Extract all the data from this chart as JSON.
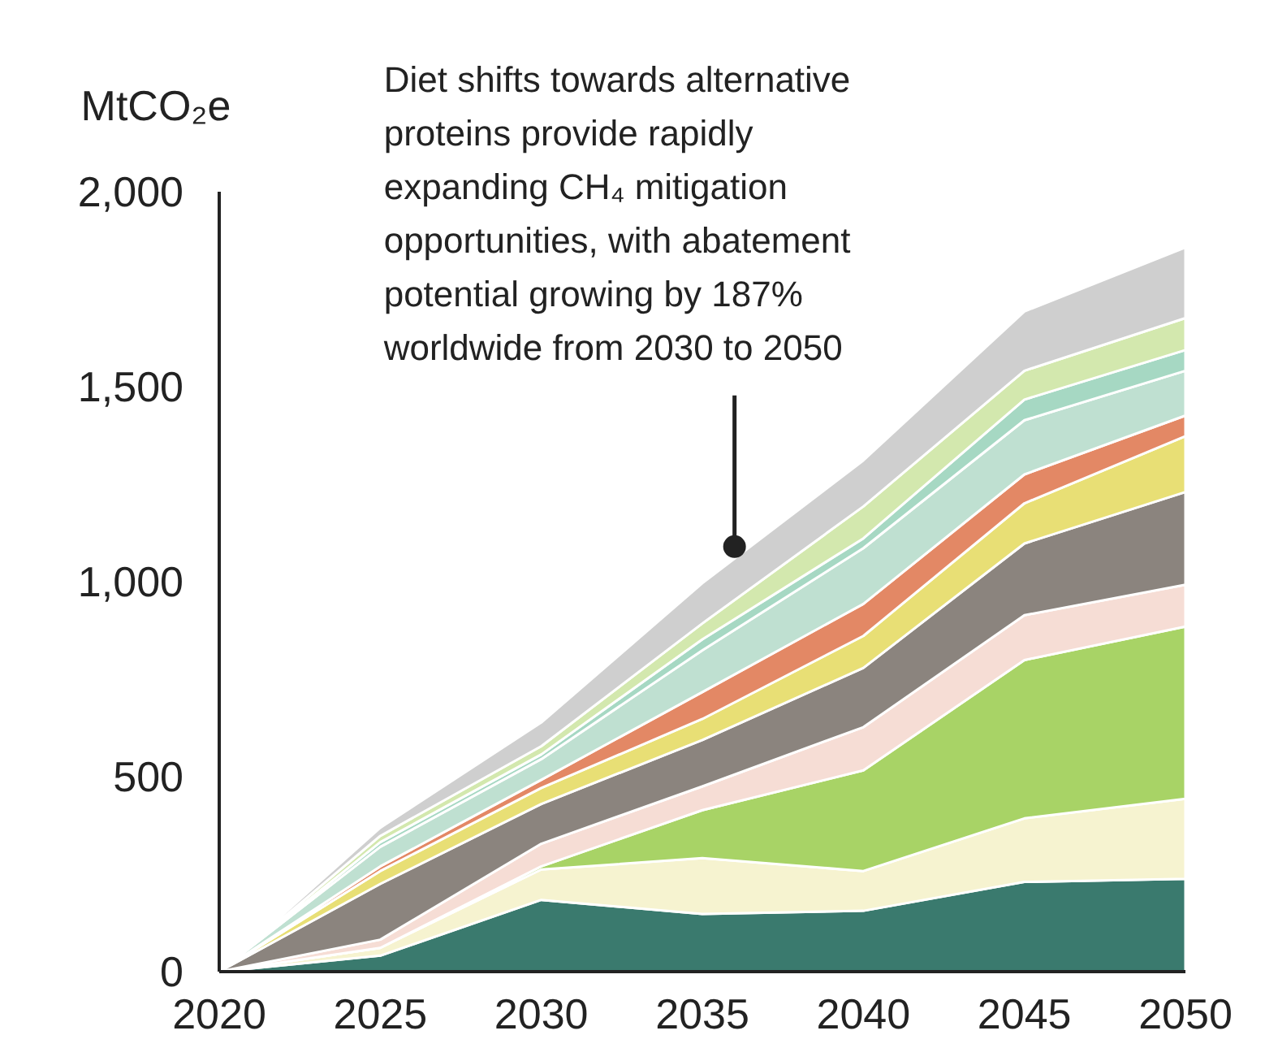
{
  "chart_data": {
    "type": "area",
    "stacked": true,
    "ylabel": "MtCO₂e",
    "x": [
      2020,
      2025,
      2030,
      2035,
      2040,
      2045,
      2050
    ],
    "xlim": [
      2020,
      2050
    ],
    "xticks": [
      2020,
      2025,
      2030,
      2035,
      2040,
      2045,
      2050
    ],
    "ylim": [
      0,
      2000
    ],
    "yticks": [
      0,
      500,
      {
        "value": 1000,
        "label": "1,000"
      },
      {
        "value": 1500,
        "label": "1,500"
      },
      {
        "value": 2000,
        "label": "2,000"
      }
    ],
    "grid": false,
    "annotations": [
      {
        "text": "Diet shifts towards alternative\nproteins provide rapidly\nexpanding CH₄ mitigation\nopportunities, with abatement\npotential growing by 187%\nworldwide from 2030 to 2050",
        "x": 2036,
        "y": 1090
      }
    ],
    "series": [
      {
        "color": "#3a7a6e",
        "values": [
          0,
          41,
          184,
          148,
          156,
          230,
          238
        ]
      },
      {
        "color": "#f6f3d0",
        "values": [
          0,
          20,
          78,
          143,
          102,
          163,
          205
        ]
      },
      {
        "color": "#a8d366",
        "values": [
          0,
          0,
          8,
          123,
          258,
          406,
          442
        ]
      },
      {
        "color": "#f6ddd5",
        "values": [
          0,
          21,
          58,
          61,
          111,
          115,
          107
        ]
      },
      {
        "color": "#8b847e",
        "values": [
          0,
          143,
          102,
          119,
          152,
          184,
          238
        ]
      },
      {
        "color": "#e8df75",
        "values": [
          0,
          33,
          41,
          54,
          82,
          103,
          143
        ]
      },
      {
        "color": "#e38865",
        "values": [
          0,
          12,
          21,
          69,
          82,
          74,
          53
        ]
      },
      {
        "color": "#bfe0d1",
        "values": [
          0,
          50,
          53,
          107,
          143,
          139,
          115
        ]
      },
      {
        "color": "#a6d8c3",
        "values": [
          0,
          12,
          12,
          28,
          25,
          53,
          53
        ]
      },
      {
        "color": "#d3e8ae",
        "values": [
          0,
          16,
          21,
          41,
          82,
          74,
          82
        ]
      },
      {
        "color": "#cfcfcf",
        "values": [
          0,
          21,
          61,
          103,
          118,
          152,
          181
        ]
      }
    ]
  }
}
